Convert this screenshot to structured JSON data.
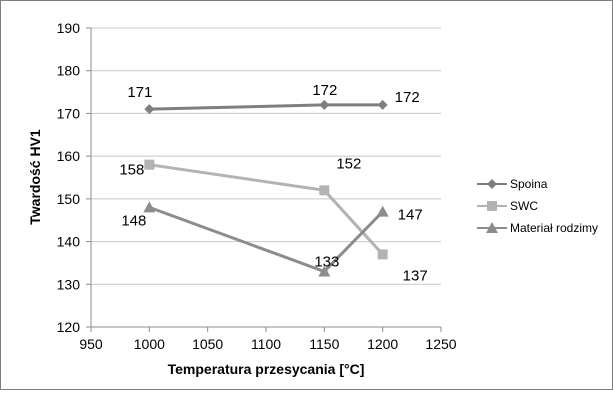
{
  "chart_data": {
    "type": "line",
    "xlabel": "Temperatura przesycania [°C]",
    "ylabel": "Twardość HV1",
    "xlim": [
      950,
      1250
    ],
    "ylim": [
      120,
      190
    ],
    "x_ticks": [
      "950",
      "1000",
      "1050",
      "1100",
      "1150",
      "1200",
      "1250"
    ],
    "y_ticks": [
      "120",
      "130",
      "140",
      "150",
      "160",
      "170",
      "180",
      "190"
    ],
    "grid": "horizontal",
    "legend_position": "right",
    "series": [
      {
        "name": "Spoina",
        "marker": "diamond",
        "color": "#7f7f7f",
        "points": [
          {
            "x": 1000,
            "y": 171,
            "label": "171"
          },
          {
            "x": 1150,
            "y": 172,
            "label": "172"
          },
          {
            "x": 1200,
            "y": 172,
            "label": "172"
          }
        ]
      },
      {
        "name": "SWC",
        "marker": "square",
        "color": "#b3b3b3",
        "points": [
          {
            "x": 1000,
            "y": 158,
            "label": "158"
          },
          {
            "x": 1150,
            "y": 152,
            "label": "152"
          },
          {
            "x": 1200,
            "y": 137,
            "label": "137"
          }
        ]
      },
      {
        "name": "Materiał rodzimy",
        "marker": "triangle",
        "color": "#8c8c8c",
        "points": [
          {
            "x": 1000,
            "y": 148,
            "label": "148"
          },
          {
            "x": 1150,
            "y": 133,
            "label": "133"
          },
          {
            "x": 1200,
            "y": 147,
            "label": "147"
          }
        ]
      }
    ]
  }
}
